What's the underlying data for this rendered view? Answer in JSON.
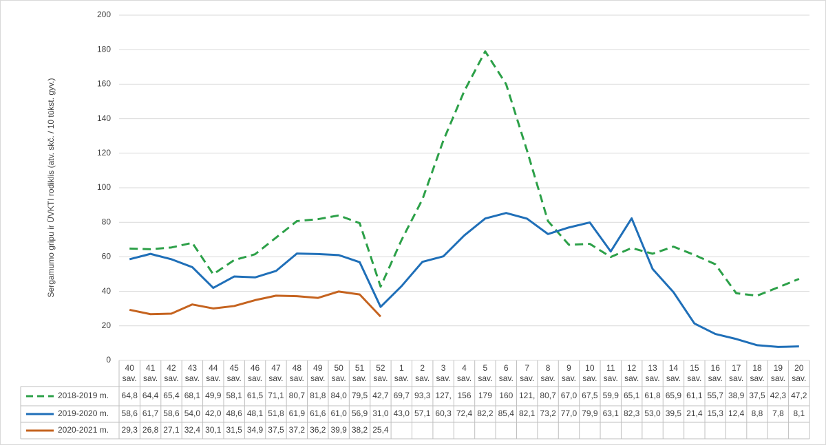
{
  "chart_data": {
    "type": "line",
    "y_label": "Sergamumo gripu ir ŪVKTI rodiklis (atv. skč. / 10 tūkst. gyv.)",
    "categories": [
      "40 sav.",
      "41 sav.",
      "42 sav.",
      "43 sav.",
      "44 sav.",
      "45 sav.",
      "46 sav.",
      "47 sav.",
      "48 sav.",
      "49 sav.",
      "50 sav.",
      "51 sav.",
      "52 sav.",
      "1 sav.",
      "2 sav.",
      "3 sav.",
      "4 sav.",
      "5 sav.",
      "6 sav.",
      "7 sav.",
      "8 sav.",
      "9 sav.",
      "10 sav.",
      "11 sav.",
      "12 sav.",
      "13 sav.",
      "14 sav.",
      "15 sav.",
      "16 sav.",
      "17 sav.",
      "18 sav.",
      "19 sav.",
      "20 sav."
    ],
    "series": [
      {
        "name": "2018-2019 m.",
        "color": "#2ca048",
        "dash": true,
        "values": [
          64.8,
          64.4,
          65.4,
          68.1,
          49.9,
          58.1,
          61.5,
          71.1,
          80.7,
          81.8,
          84.0,
          79.5,
          42.7,
          69.7,
          93.3,
          127.4,
          156,
          179,
          160,
          121.5,
          80.7,
          67.0,
          67.5,
          59.9,
          65.1,
          61.8,
          65.9,
          61.1,
          55.7,
          38.9,
          37.5,
          42.3,
          47.2
        ],
        "value_labels": [
          "64,8",
          "64,4",
          "65,4",
          "68,1",
          "49,9",
          "58,1",
          "61,5",
          "71,1",
          "80,7",
          "81,8",
          "84,0",
          "79,5",
          "42,7",
          "69,7",
          "93,3",
          "127,",
          "156",
          "179",
          "160",
          "121,",
          "80,7",
          "67,0",
          "67,5",
          "59,9",
          "65,1",
          "61,8",
          "65,9",
          "61,1",
          "55,7",
          "38,9",
          "37,5",
          "42,3",
          "47,2"
        ]
      },
      {
        "name": "2019-2020 m.",
        "color": "#1f6fb8",
        "dash": false,
        "values": [
          58.6,
          61.7,
          58.6,
          54.0,
          42.0,
          48.6,
          48.1,
          51.8,
          61.9,
          61.6,
          61.0,
          56.9,
          31.0,
          43.0,
          57.1,
          60.3,
          72.4,
          82.2,
          85.4,
          82.1,
          73.2,
          77.0,
          79.9,
          63.1,
          82.3,
          53.0,
          39.5,
          21.4,
          15.3,
          12.4,
          8.8,
          7.8,
          8.1
        ],
        "value_labels": [
          "58,6",
          "61,7",
          "58,6",
          "54,0",
          "42,0",
          "48,6",
          "48,1",
          "51,8",
          "61,9",
          "61,6",
          "61,0",
          "56,9",
          "31,0",
          "43,0",
          "57,1",
          "60,3",
          "72,4",
          "82,2",
          "85,4",
          "82,1",
          "73,2",
          "77,0",
          "79,9",
          "63,1",
          "82,3",
          "53,0",
          "39,5",
          "21,4",
          "15,3",
          "12,4",
          "8,8",
          "7,8",
          "8,1"
        ]
      },
      {
        "name": "2020-2021 m.",
        "color": "#c5631f",
        "dash": false,
        "values": [
          29.3,
          26.8,
          27.1,
          32.4,
          30.1,
          31.5,
          34.9,
          37.5,
          37.2,
          36.2,
          39.9,
          38.2,
          25.4,
          null,
          null,
          null,
          null,
          null,
          null,
          null,
          null,
          null,
          null,
          null,
          null,
          null,
          null,
          null,
          null,
          null,
          null,
          null,
          null
        ],
        "value_labels": [
          "29,3",
          "26,8",
          "27,1",
          "32,4",
          "30,1",
          "31,5",
          "34,9",
          "37,5",
          "37,2",
          "36,2",
          "39,9",
          "38,2",
          "25,4",
          null,
          null,
          null,
          null,
          null,
          null,
          null,
          null,
          null,
          null,
          null,
          null,
          null,
          null,
          null,
          null,
          null,
          null,
          null,
          null
        ]
      }
    ],
    "ylim": [
      0,
      200
    ],
    "yticks": [
      0,
      20,
      40,
      60,
      80,
      100,
      120,
      140,
      160,
      180,
      200
    ],
    "grid": true
  }
}
